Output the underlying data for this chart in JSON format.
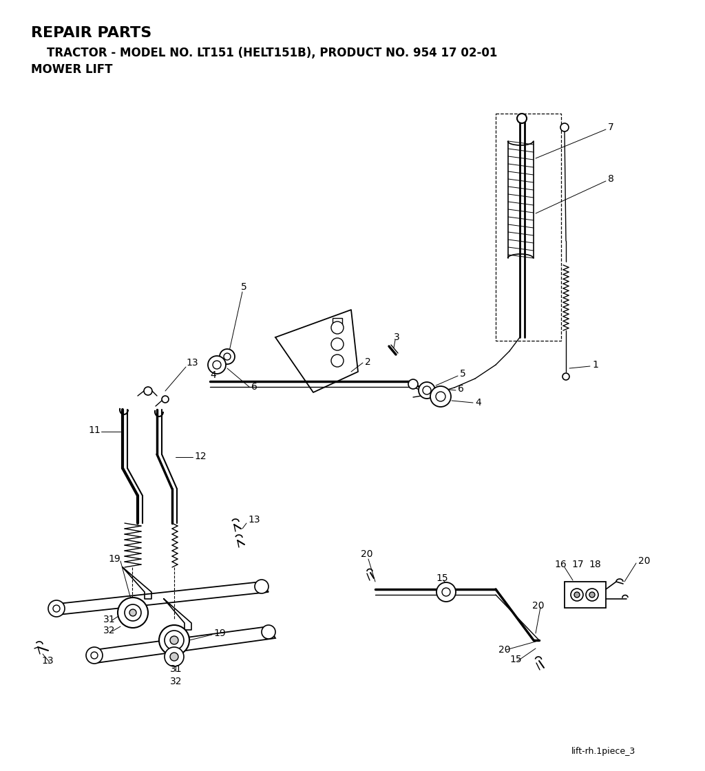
{
  "title_line1": "REPAIR PARTS",
  "title_line2": "    TRACTOR - MODEL NO. LT151 (HELT151B), PRODUCT NO. 954 17 02-01",
  "title_line3": "MOWER LIFT",
  "footer": "lift-rh.1piece_3",
  "bg_color": "#ffffff",
  "line_color": "#000000",
  "label_fontsize": 10,
  "title_fontsize1": 16,
  "title_fontsize2": 12
}
